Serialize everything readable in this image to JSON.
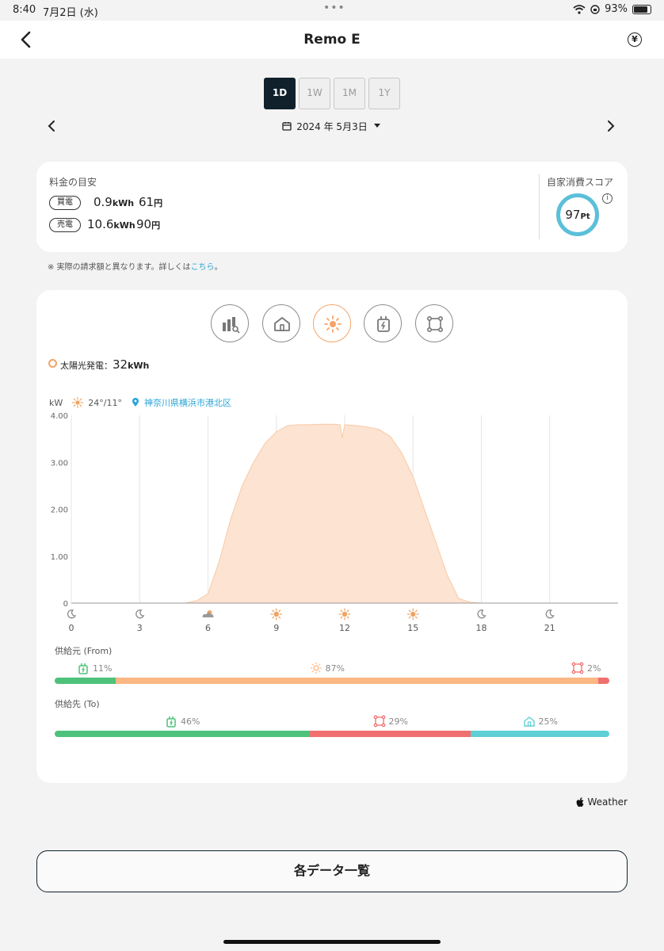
{
  "status_bar": {
    "time": "8:40",
    "date": "7月2日 (水)",
    "battery": "93%"
  },
  "nav": {
    "title": "Remo E",
    "yen": "¥"
  },
  "period_tabs": [
    {
      "label": "1D",
      "active": true
    },
    {
      "label": "1W",
      "active": false
    },
    {
      "label": "1M",
      "active": false
    },
    {
      "label": "1Y",
      "active": false
    }
  ],
  "date_nav": {
    "label": "2024 年 5月3日"
  },
  "summary": {
    "title": "料金の目安",
    "buy": {
      "label": "買電",
      "kwh": "0.9",
      "kwh_unit": "kWh",
      "yen": "61",
      "yen_unit": "円"
    },
    "sell": {
      "label": "売電",
      "kwh": "10.6",
      "kwh_unit": "kWh",
      "yen": "90",
      "yen_unit": "円"
    },
    "score_title": "自家消費スコア",
    "score_value": "97",
    "score_unit": "Pt"
  },
  "note": {
    "prefix": "※ 実際の請求額と異なります。詳しくは",
    "link": "こちら",
    "suffix": "。"
  },
  "category_buttons": [
    {
      "icon": "bar-chart-search-icon",
      "active": false
    },
    {
      "icon": "house-icon",
      "active": false
    },
    {
      "icon": "sun-icon",
      "active": true
    },
    {
      "icon": "battery-plug-icon",
      "active": false
    },
    {
      "icon": "grid-nodes-icon",
      "active": false
    }
  ],
  "solar": {
    "label": "太陽光発電：",
    "value": "32",
    "unit": "kWh"
  },
  "weather": {
    "unit": "kW",
    "temp": "24°/11°",
    "location": "神奈川県横浜市港北区"
  },
  "chart_data": {
    "type": "area",
    "title": "",
    "xlabel": "",
    "ylabel": "kW",
    "xlim": [
      0,
      24
    ],
    "ylim": [
      0,
      4
    ],
    "x_ticks": [
      0,
      3,
      6,
      9,
      12,
      15,
      18,
      21
    ],
    "y_ticks": [
      "0",
      "1.00",
      "2.00",
      "3.00",
      "4.00"
    ],
    "x_tick_icons": [
      "moon-icon",
      "moon-icon",
      "partly-cloudy-icon",
      "sun-icon",
      "sun-icon",
      "sun-icon",
      "moon-icon",
      "moon-icon"
    ],
    "grid": true,
    "series": [
      {
        "color": "#fde3d1",
        "x": [
          0,
          5.0,
          5.5,
          6.0,
          6.5,
          7.0,
          7.5,
          8.0,
          8.5,
          9.0,
          9.5,
          10.0,
          10.5,
          11.0,
          11.5,
          11.8,
          11.9,
          12.0,
          12.5,
          13.0,
          13.5,
          14.0,
          14.5,
          15.0,
          15.5,
          16.0,
          16.5,
          17.0,
          17.5,
          18.0,
          24
        ],
        "y": [
          0,
          0,
          0.05,
          0.2,
          0.9,
          1.8,
          2.5,
          3.0,
          3.4,
          3.65,
          3.78,
          3.8,
          3.8,
          3.81,
          3.81,
          3.8,
          3.52,
          3.8,
          3.78,
          3.75,
          3.7,
          3.55,
          3.2,
          2.7,
          2.0,
          1.3,
          0.6,
          0.1,
          0.02,
          0,
          0
        ]
      }
    ]
  },
  "supply_from": {
    "label": "供給元 (From)",
    "segments": [
      {
        "icon": "battery-plug-icon",
        "pct": "11%",
        "value": 11,
        "color": "#4ec27a"
      },
      {
        "icon": "sun-icon",
        "pct": "87%",
        "value": 87,
        "color": "#fbb784"
      },
      {
        "icon": "grid-nodes-icon",
        "pct": "2%",
        "value": 2,
        "color": "#f07070"
      }
    ]
  },
  "supply_to": {
    "label": "供給先 (To)",
    "segments": [
      {
        "icon": "battery-plug-icon",
        "pct": "46%",
        "value": 46,
        "color": "#4ec27a"
      },
      {
        "icon": "grid-nodes-icon",
        "pct": "29%",
        "value": 29,
        "color": "#f07070"
      },
      {
        "icon": "house-icon",
        "pct": "25%",
        "value": 25,
        "color": "#5fd0d6"
      }
    ]
  },
  "weather_credit": "Weather",
  "list_button": "各データ一覧"
}
